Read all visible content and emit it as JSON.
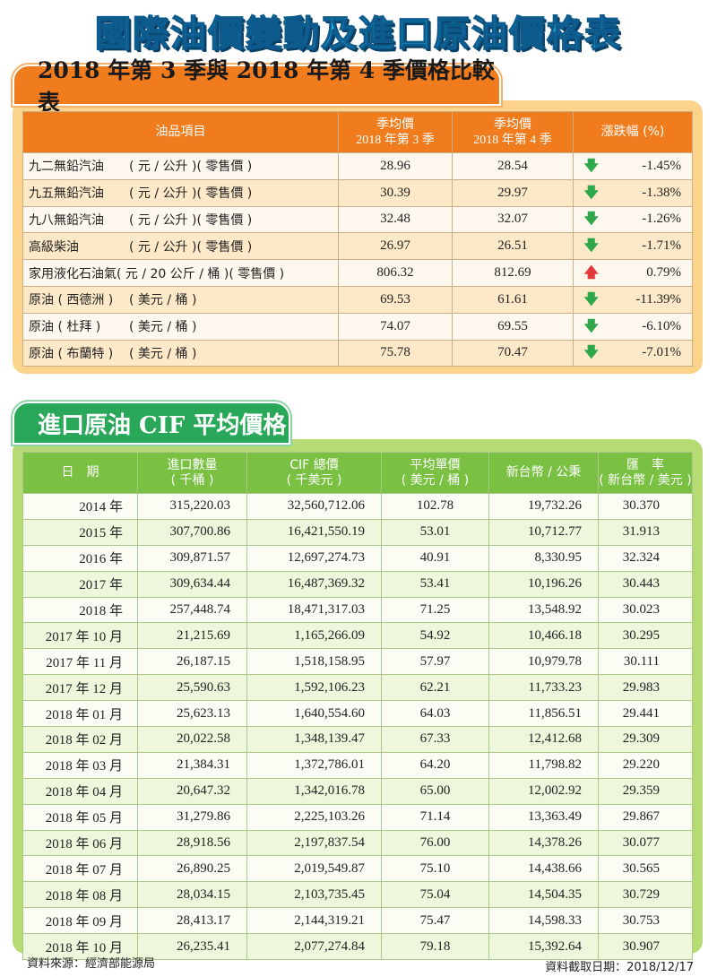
{
  "title": "國際油價變動及進口原油價格表",
  "section1": {
    "title": "2018 年第 3 季與 2018 年第 4 季價格比較表",
    "headers": {
      "item": "油品項目",
      "q3_line1": "季均價",
      "q3_line2": "2018 年第 3 季",
      "q4_line1": "季均價",
      "q4_line2": "2018 年第 4 季",
      "change": "漲跌幅 (%)"
    },
    "rows": [
      {
        "name": "九二無鉛汽油",
        "unit": "( 元 / 公升 )( 零售價 )",
        "q3": "28.96",
        "q4": "28.54",
        "direction": "down",
        "change": "-1.45%"
      },
      {
        "name": "九五無鉛汽油",
        "unit": "( 元 / 公升 )( 零售價 )",
        "q3": "30.39",
        "q4": "29.97",
        "direction": "down",
        "change": "-1.38%"
      },
      {
        "name": "九八無鉛汽油",
        "unit": "( 元 / 公升 )( 零售價 )",
        "q3": "32.48",
        "q4": "32.07",
        "direction": "down",
        "change": "-1.26%"
      },
      {
        "name": "高級柴油",
        "unit": "( 元 / 公升 )( 零售價 )",
        "q3": "26.97",
        "q4": "26.51",
        "direction": "down",
        "change": "-1.71%"
      },
      {
        "name": "家用液化石油氣",
        "unit": "( 元 / 20 公斤 / 桶 )( 零售價 )",
        "q3": "806.32",
        "q4": "812.69",
        "direction": "up",
        "change": "0.79%"
      },
      {
        "name": "原油 ( 西德洲 )",
        "unit": "( 美元 / 桶 )",
        "q3": "69.53",
        "q4": "61.61",
        "direction": "down",
        "change": "-11.39%"
      },
      {
        "name": "原油 ( 杜拜 )",
        "unit": "( 美元 / 桶 )",
        "q3": "74.07",
        "q4": "69.55",
        "direction": "down",
        "change": "-6.10%"
      },
      {
        "name": "原油 ( 布蘭特 )",
        "unit": "( 美元 / 桶 )",
        "q3": "75.78",
        "q4": "70.47",
        "direction": "down",
        "change": "-7.01%"
      }
    ],
    "colors": {
      "header": "#f07c1e",
      "panel": "#fbd38a",
      "down_arrow": "#2ea84a",
      "up_arrow": "#e23a3a"
    }
  },
  "section2": {
    "title": "進口原油 CIF 平均價格",
    "headers": {
      "date": "日　期",
      "qty_line1": "進口數量",
      "qty_line2": "( 千桶 )",
      "cif_line1": "CIF 總價",
      "cif_line2": "( 千美元 )",
      "unit_line1": "平均單價",
      "unit_line2": "( 美元 / 桶 )",
      "twd": "新台幣 / 公秉",
      "rate_line1": "匯　率",
      "rate_line2": "( 新台幣 / 美元 )"
    },
    "rows": [
      {
        "date": "2014 年",
        "qty": "315,220.03",
        "cif": "32,560,712.06",
        "unit": "102.78",
        "twd": "19,732.26",
        "rate": "30.370"
      },
      {
        "date": "2015 年",
        "qty": "307,700.86",
        "cif": "16,421,550.19",
        "unit": "53.01",
        "twd": "10,712.77",
        "rate": "31.913"
      },
      {
        "date": "2016 年",
        "qty": "309,871.57",
        "cif": "12,697,274.73",
        "unit": "40.91",
        "twd": "8,330.95",
        "rate": "32.324"
      },
      {
        "date": "2017 年",
        "qty": "309,634.44",
        "cif": "16,487,369.32",
        "unit": "53.41",
        "twd": "10,196.26",
        "rate": "30.443"
      },
      {
        "date": "2018 年",
        "qty": "257,448.74",
        "cif": "18,471,317.03",
        "unit": "71.25",
        "twd": "13,548.92",
        "rate": "30.023"
      },
      {
        "date": "2017 年 10 月",
        "qty": "21,215.69",
        "cif": "1,165,266.09",
        "unit": "54.92",
        "twd": "10,466.18",
        "rate": "30.295"
      },
      {
        "date": "2017 年 11 月",
        "qty": "26,187.15",
        "cif": "1,518,158.95",
        "unit": "57.97",
        "twd": "10,979.78",
        "rate": "30.111"
      },
      {
        "date": "2017 年 12 月",
        "qty": "25,590.63",
        "cif": "1,592,106.23",
        "unit": "62.21",
        "twd": "11,733.23",
        "rate": "29.983"
      },
      {
        "date": "2018 年 01 月",
        "qty": "25,623.13",
        "cif": "1,640,554.60",
        "unit": "64.03",
        "twd": "11,856.51",
        "rate": "29.441"
      },
      {
        "date": "2018 年 02 月",
        "qty": "20,022.58",
        "cif": "1,348,139.47",
        "unit": "67.33",
        "twd": "12,412.68",
        "rate": "29.309"
      },
      {
        "date": "2018 年 03 月",
        "qty": "21,384.31",
        "cif": "1,372,786.01",
        "unit": "64.20",
        "twd": "11,798.82",
        "rate": "29.220"
      },
      {
        "date": "2018 年 04 月",
        "qty": "20,647.32",
        "cif": "1,342,016.78",
        "unit": "65.00",
        "twd": "12,002.92",
        "rate": "29.359"
      },
      {
        "date": "2018 年 05 月",
        "qty": "31,279.86",
        "cif": "2,225,103.26",
        "unit": "71.14",
        "twd": "13,363.49",
        "rate": "29.867"
      },
      {
        "date": "2018 年 06 月",
        "qty": "28,918.56",
        "cif": "2,197,837.54",
        "unit": "76.00",
        "twd": "14,378.26",
        "rate": "30.077"
      },
      {
        "date": "2018 年 07 月",
        "qty": "26,890.25",
        "cif": "2,019,549.87",
        "unit": "75.10",
        "twd": "14,438.66",
        "rate": "30.565"
      },
      {
        "date": "2018 年 08 月",
        "qty": "28,034.15",
        "cif": "2,103,735.45",
        "unit": "75.04",
        "twd": "14,504.35",
        "rate": "30.729"
      },
      {
        "date": "2018 年 09 月",
        "qty": "28,413.17",
        "cif": "2,144,319.21",
        "unit": "75.47",
        "twd": "14,598.33",
        "rate": "30.753"
      },
      {
        "date": "2018 年 10 月",
        "qty": "26,235.41",
        "cif": "2,077,274.84",
        "unit": "79.18",
        "twd": "15,392.64",
        "rate": "30.907"
      }
    ],
    "colors": {
      "header": "#7ac043",
      "panel": "#b7db74",
      "tab": "#29a85a"
    }
  },
  "footer": {
    "source": "資料來源：經濟部能源局",
    "cutoff": "資料截取日期：2018/12/17"
  }
}
